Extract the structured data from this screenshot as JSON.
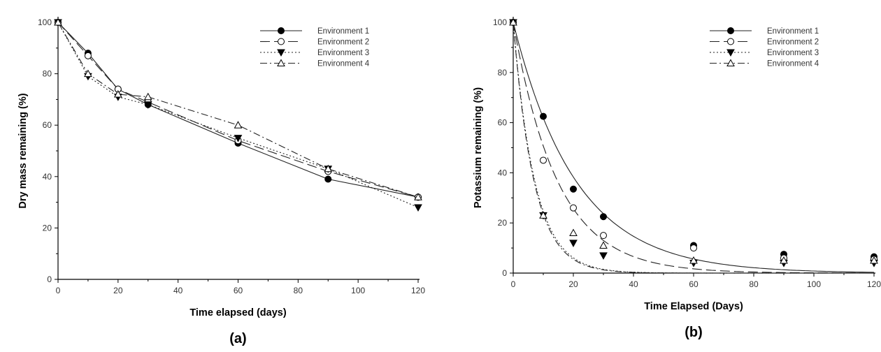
{
  "chart_data": [
    {
      "type": "line",
      "panel_label": "(a)",
      "xlabel": "Time elapsed (days)",
      "ylabel": "Dry mass remaining (%)",
      "xlim": [
        0,
        120
      ],
      "ylim": [
        0,
        100
      ],
      "xticks": [
        0,
        20,
        40,
        60,
        80,
        100,
        120
      ],
      "yticks": [
        0,
        20,
        40,
        60,
        80,
        100
      ],
      "grid": false,
      "legend_position": "top-right",
      "x": [
        0,
        10,
        20,
        30,
        60,
        90,
        120
      ],
      "series": [
        {
          "name": "Environment 1",
          "marker": "filled-circle",
          "line": "solid",
          "values": [
            100,
            88,
            74,
            68,
            53,
            39,
            32
          ]
        },
        {
          "name": "Environment 2",
          "marker": "open-circle",
          "line": "long-dash",
          "values": [
            100,
            87,
            74,
            69,
            54,
            42,
            32
          ]
        },
        {
          "name": "Environment 3",
          "marker": "filled-triangle-down",
          "line": "dotted",
          "values": [
            100,
            79,
            71,
            68,
            55,
            43,
            28
          ]
        },
        {
          "name": "Environment 4",
          "marker": "open-triangle-up",
          "line": "dash-dot",
          "values": [
            100,
            80,
            72,
            71,
            60,
            43,
            32
          ]
        }
      ]
    },
    {
      "type": "scatter",
      "panel_label": "(b)",
      "xlabel": "Time Elapsed (Days)",
      "ylabel": "Potassium remaining (%)",
      "xlim": [
        0,
        120
      ],
      "ylim": [
        0,
        100
      ],
      "xticks": [
        0,
        20,
        40,
        60,
        80,
        100,
        120
      ],
      "yticks": [
        0,
        20,
        40,
        60,
        80,
        100
      ],
      "grid": false,
      "legend_position": "top-right",
      "x": [
        0,
        10,
        20,
        30,
        60,
        90,
        120
      ],
      "series": [
        {
          "name": "Environment 1",
          "marker": "filled-circle",
          "line": "solid",
          "values": [
            100,
            62.5,
            33.5,
            22.5,
            11,
            7.5,
            6.5
          ],
          "fit_decay_rate": 0.048
        },
        {
          "name": "Environment 2",
          "marker": "open-circle",
          "line": "long-dash",
          "values": [
            100,
            45,
            26,
            15,
            10,
            6,
            5.5
          ],
          "fit_decay_rate": 0.068
        },
        {
          "name": "Environment 3",
          "marker": "filled-triangle-down",
          "line": "dotted",
          "values": [
            100,
            23,
            12,
            7,
            4,
            4,
            4
          ],
          "fit_decay_rate": 0.14
        },
        {
          "name": "Environment 4",
          "marker": "open-triangle-up",
          "line": "dash-dot",
          "values": [
            100,
            23,
            16,
            11,
            5,
            5,
            5
          ],
          "fit_decay_rate": 0.145
        }
      ]
    }
  ]
}
